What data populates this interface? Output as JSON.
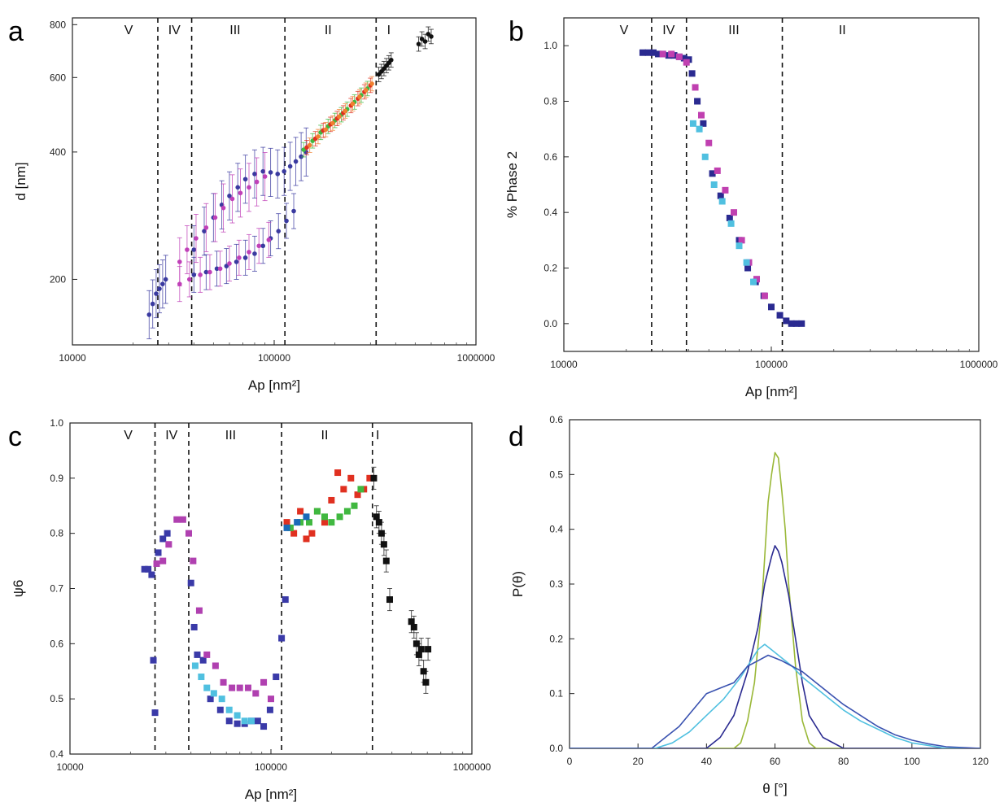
{
  "chart_data": [
    {
      "panel": "a",
      "type": "scatter",
      "xscale": "log",
      "yscale": "log",
      "xlabel": "Ap [nm²]",
      "ylabel": "d [nm]",
      "xlim": [
        10000,
        1000000
      ],
      "ylim": [
        140,
        830
      ],
      "xticks": [
        10000,
        100000,
        1000000
      ],
      "xtick_labels": [
        "10000",
        "100000",
        "1000000"
      ],
      "yticks": [
        200,
        400,
        600,
        800
      ],
      "ytick_labels": [
        "200",
        "400",
        "600",
        "800"
      ],
      "boundaries": [
        26500,
        39000,
        113000,
        320000
      ],
      "regions": [
        {
          "label": "V",
          "x": 19000
        },
        {
          "label": "IV",
          "x": 32000
        },
        {
          "label": "III",
          "x": 64000
        },
        {
          "label": "II",
          "x": 185000
        },
        {
          "label": "I",
          "x": 370000
        }
      ],
      "series": [
        {
          "color": "#3a3aa0",
          "marker": "circle",
          "err": 0.14,
          "x": [
            24000,
            25000,
            26000,
            27000,
            28000,
            29000,
            40000,
            45000,
            50000,
            55000,
            60000,
            66000,
            72000,
            80000,
            88000,
            96000,
            104000,
            112000,
            120000,
            128000,
            136000,
            144000
          ],
          "y": [
            165,
            175,
            185,
            190,
            195,
            200,
            235,
            260,
            280,
            300,
            315,
            330,
            345,
            355,
            360,
            358,
            355,
            360,
            370,
            380,
            390,
            400
          ]
        },
        {
          "color": "#3a3aa0",
          "marker": "circle",
          "err": 0.1,
          "x": [
            40000,
            46000,
            52000,
            58000,
            65000,
            72000,
            80000,
            88000,
            96000,
            105000,
            115000,
            125000
          ],
          "y": [
            205,
            208,
            212,
            215,
            220,
            225,
            230,
            240,
            250,
            260,
            275,
            290
          ]
        },
        {
          "color": "#c040b8",
          "marker": "circle",
          "err": 0.14,
          "x": [
            34000,
            37000,
            41000,
            46000,
            51000,
            56000,
            62000,
            68000,
            75000,
            82000,
            90000
          ],
          "y": [
            220,
            235,
            250,
            265,
            280,
            295,
            310,
            320,
            330,
            340,
            350
          ]
        },
        {
          "color": "#c040b8",
          "marker": "circle",
          "err": 0.1,
          "x": [
            34000,
            38000,
            43000,
            48000,
            54000,
            60000,
            67000,
            75000,
            84000,
            94000
          ],
          "y": [
            195,
            200,
            205,
            208,
            212,
            218,
            225,
            232,
            240,
            248
          ]
        },
        {
          "color": "#40b840",
          "marker": "circle",
          "err": 0.04,
          "x": [
            140000,
            155000,
            170000,
            185000,
            200000,
            215000,
            230000,
            250000,
            270000,
            290000
          ],
          "y": [
            405,
            425,
            445,
            460,
            475,
            490,
            505,
            525,
            545,
            565
          ]
        },
        {
          "color": "#e03020",
          "marker": "circle",
          "err": 0.04,
          "x": [
            145000,
            160000,
            175000,
            190000,
            205000,
            220000,
            240000,
            260000,
            280000,
            300000
          ],
          "y": [
            410,
            430,
            450,
            465,
            480,
            495,
            515,
            535,
            555,
            575
          ]
        },
        {
          "color": "#f08030",
          "marker": "circle",
          "err": 0.04,
          "x": [
            150000,
            165000,
            180000,
            195000,
            210000,
            225000,
            245000,
            265000,
            285000,
            305000
          ],
          "y": [
            415,
            435,
            452,
            468,
            485,
            500,
            520,
            540,
            560,
            580
          ]
        },
        {
          "color": "#111111",
          "marker": "circle",
          "err": 0.04,
          "x": [
            330000,
            340000,
            350000,
            360000,
            370000,
            380000,
            520000,
            540000,
            560000,
            580000,
            600000
          ],
          "y": [
            610,
            620,
            630,
            640,
            650,
            660,
            720,
            740,
            730,
            760,
            750
          ]
        }
      ]
    },
    {
      "panel": "b",
      "type": "scatter",
      "xscale": "log",
      "xlabel": "Ap [nm²]",
      "ylabel": "% Phase 2",
      "xlim": [
        10000,
        1000000
      ],
      "ylim": [
        -0.1,
        1.1
      ],
      "xticks": [
        10000,
        100000,
        1000000
      ],
      "xtick_labels": [
        "10000",
        "100000",
        "1000000"
      ],
      "yticks": [
        0.0,
        0.2,
        0.4,
        0.6,
        0.8,
        1.0
      ],
      "ytick_labels": [
        "0.0",
        "0.2",
        "0.4",
        "0.6",
        "0.8",
        "1.0"
      ],
      "boundaries": [
        26500,
        39000,
        113000
      ],
      "regions": [
        {
          "label": "V",
          "x": 19500
        },
        {
          "label": "IV",
          "x": 32000
        },
        {
          "label": "III",
          "x": 66000
        },
        {
          "label": "II",
          "x": 220000
        }
      ],
      "series": [
        {
          "color": "#2a2a90",
          "marker": "square",
          "x": [
            24000,
            25500,
            27000,
            28500,
            30000,
            32000,
            34000,
            36000,
            38000,
            40000,
            41500,
            44000,
            47000,
            52000,
            57000,
            63000,
            70000,
            77000,
            84000,
            92000,
            100000,
            110000,
            118000,
            125000,
            132000,
            140000
          ],
          "y": [
            0.975,
            0.975,
            0.975,
            0.97,
            0.97,
            0.965,
            0.965,
            0.96,
            0.955,
            0.95,
            0.9,
            0.8,
            0.72,
            0.54,
            0.46,
            0.38,
            0.3,
            0.2,
            0.15,
            0.1,
            0.06,
            0.03,
            0.01,
            0.0,
            0.0,
            0.0
          ]
        },
        {
          "color": "#c040b0",
          "marker": "square",
          "x": [
            30000,
            33000,
            36000,
            39000,
            43000,
            46000,
            50000,
            55000,
            60000,
            66000,
            72000,
            78000,
            85000,
            93000
          ],
          "y": [
            0.97,
            0.97,
            0.96,
            0.94,
            0.85,
            0.75,
            0.65,
            0.55,
            0.48,
            0.4,
            0.3,
            0.22,
            0.16,
            0.1
          ]
        },
        {
          "color": "#50c0e0",
          "marker": "square",
          "x": [
            42000,
            45000,
            48000,
            53000,
            58000,
            64000,
            70000,
            76000,
            82000
          ],
          "y": [
            0.72,
            0.7,
            0.6,
            0.5,
            0.44,
            0.36,
            0.28,
            0.22,
            0.15
          ]
        }
      ]
    },
    {
      "panel": "c",
      "type": "scatter",
      "xscale": "log",
      "xlabel": "Ap [nm²]",
      "ylabel": "ψ6",
      "xlim": [
        10000,
        1000000
      ],
      "ylim": [
        0.4,
        1.0
      ],
      "xticks": [
        10000,
        100000,
        1000000
      ],
      "xtick_labels": [
        "10000",
        "100000",
        "1000000"
      ],
      "yticks": [
        0.4,
        0.5,
        0.6,
        0.7,
        0.8,
        0.9,
        1.0
      ],
      "ytick_labels": [
        "0.4",
        "0.5",
        "0.6",
        "0.7",
        "0.8",
        "0.9",
        "1.0"
      ],
      "boundaries": [
        26500,
        39000,
        113000,
        320000
      ],
      "regions": [
        {
          "label": "V",
          "x": 19500
        },
        {
          "label": "IV",
          "x": 32000
        },
        {
          "label": "III",
          "x": 63000
        },
        {
          "label": "II",
          "x": 185000
        },
        {
          "label": "I",
          "x": 340000
        }
      ],
      "series": [
        {
          "color": "#3a3aa8",
          "marker": "square",
          "x": [
            23500,
            24500,
            25500,
            26000,
            26500,
            27500,
            29000,
            30500,
            40000,
            41500,
            43000,
            46000,
            50000,
            56000,
            62000,
            68000,
            74000,
            80000,
            86000,
            92000,
            99000,
            106000,
            113000,
            118000
          ],
          "y": [
            0.735,
            0.735,
            0.725,
            0.57,
            0.475,
            0.765,
            0.79,
            0.8,
            0.71,
            0.63,
            0.58,
            0.57,
            0.5,
            0.48,
            0.46,
            0.455,
            0.455,
            0.46,
            0.46,
            0.45,
            0.48,
            0.54,
            0.61,
            0.68
          ]
        },
        {
          "color": "#b040b0",
          "marker": "square",
          "x": [
            27000,
            29000,
            31000,
            34000,
            36500,
            39000,
            41000,
            44000,
            48000,
            53000,
            58000,
            64000,
            70000,
            77000,
            84000,
            92000,
            100000
          ],
          "y": [
            0.745,
            0.75,
            0.78,
            0.825,
            0.825,
            0.8,
            0.75,
            0.66,
            0.58,
            0.56,
            0.53,
            0.52,
            0.52,
            0.52,
            0.51,
            0.53,
            0.5
          ]
        },
        {
          "color": "#50c0e0",
          "marker": "square",
          "x": [
            42000,
            45000,
            48000,
            52000,
            57000,
            62000,
            68000,
            74000,
            80000
          ],
          "y": [
            0.56,
            0.54,
            0.52,
            0.51,
            0.5,
            0.48,
            0.47,
            0.46,
            0.46
          ]
        },
        {
          "color": "#e03020",
          "marker": "square",
          "x": [
            120000,
            130000,
            140000,
            150000,
            160000,
            170000,
            185000,
            200000,
            215000,
            230000,
            250000,
            270000,
            290000,
            310000
          ],
          "y": [
            0.82,
            0.8,
            0.84,
            0.79,
            0.8,
            0.84,
            0.82,
            0.86,
            0.91,
            0.88,
            0.9,
            0.87,
            0.88,
            0.9
          ]
        },
        {
          "color": "#40b840",
          "marker": "square",
          "x": [
            125000,
            140000,
            155000,
            170000,
            185000,
            200000,
            220000,
            240000,
            260000,
            280000
          ],
          "y": [
            0.81,
            0.82,
            0.82,
            0.84,
            0.83,
            0.82,
            0.83,
            0.84,
            0.85,
            0.88
          ]
        },
        {
          "color": "#1a6ab8",
          "marker": "square",
          "x": [
            120000,
            135000,
            150000
          ],
          "y": [
            0.81,
            0.82,
            0.83
          ]
        },
        {
          "color": "#111111",
          "marker": "square",
          "err": 0.02,
          "x": [
            325000,
            335000,
            345000,
            355000,
            365000,
            375000,
            390000,
            500000,
            515000,
            530000,
            545000,
            560000,
            575000,
            590000,
            605000
          ],
          "y": [
            0.9,
            0.83,
            0.82,
            0.8,
            0.78,
            0.75,
            0.68,
            0.64,
            0.63,
            0.6,
            0.58,
            0.59,
            0.55,
            0.53,
            0.59
          ]
        }
      ]
    },
    {
      "panel": "d",
      "type": "line",
      "xlabel": "θ [°]",
      "ylabel": "P(θ)",
      "xlim": [
        0,
        120
      ],
      "ylim": [
        0,
        0.6
      ],
      "xticks": [
        0,
        20,
        40,
        60,
        80,
        100,
        120
      ],
      "xtick_labels": [
        "0",
        "20",
        "40",
        "60",
        "80",
        "100",
        "120"
      ],
      "yticks": [
        0.0,
        0.1,
        0.2,
        0.3,
        0.4,
        0.5,
        0.6
      ],
      "ytick_labels": [
        "0.0",
        "0.1",
        "0.2",
        "0.3",
        "0.4",
        "0.5",
        "0.6"
      ],
      "series": [
        {
          "color": "#9ab838",
          "x": [
            0,
            48,
            50,
            52,
            54,
            56,
            57,
            58,
            59,
            60,
            61,
            62,
            63,
            64,
            66,
            68,
            70,
            72,
            120
          ],
          "y": [
            0,
            0,
            0.01,
            0.05,
            0.12,
            0.25,
            0.35,
            0.45,
            0.5,
            0.54,
            0.53,
            0.47,
            0.4,
            0.3,
            0.15,
            0.05,
            0.01,
            0,
            0
          ]
        },
        {
          "color": "#2a2a90",
          "x": [
            0,
            40,
            44,
            48,
            52,
            55,
            57,
            59,
            60,
            61,
            62,
            64,
            66,
            68,
            70,
            74,
            80,
            120
          ],
          "y": [
            0,
            0,
            0.02,
            0.06,
            0.14,
            0.22,
            0.3,
            0.35,
            0.37,
            0.36,
            0.34,
            0.28,
            0.2,
            0.12,
            0.06,
            0.02,
            0,
            0
          ]
        },
        {
          "color": "#50c0e0",
          "x": [
            0,
            25,
            30,
            35,
            40,
            45,
            50,
            53,
            55,
            57,
            59,
            61,
            63,
            65,
            68,
            72,
            76,
            80,
            85,
            90,
            95,
            100,
            105,
            110,
            120
          ],
          "y": [
            0,
            0,
            0.01,
            0.03,
            0.06,
            0.09,
            0.13,
            0.16,
            0.18,
            0.19,
            0.18,
            0.17,
            0.16,
            0.15,
            0.13,
            0.11,
            0.09,
            0.07,
            0.05,
            0.035,
            0.02,
            0.01,
            0.005,
            0,
            0
          ]
        },
        {
          "color": "#3a52b0",
          "x": [
            0,
            24,
            28,
            32,
            36,
            40,
            44,
            48,
            52,
            55,
            58,
            60,
            62,
            65,
            68,
            72,
            76,
            80,
            85,
            90,
            95,
            100,
            105,
            110,
            120
          ],
          "y": [
            0,
            0,
            0.02,
            0.04,
            0.07,
            0.1,
            0.11,
            0.12,
            0.15,
            0.16,
            0.17,
            0.165,
            0.16,
            0.15,
            0.14,
            0.12,
            0.1,
            0.08,
            0.06,
            0.04,
            0.025,
            0.015,
            0.008,
            0.003,
            0
          ]
        }
      ]
    }
  ]
}
